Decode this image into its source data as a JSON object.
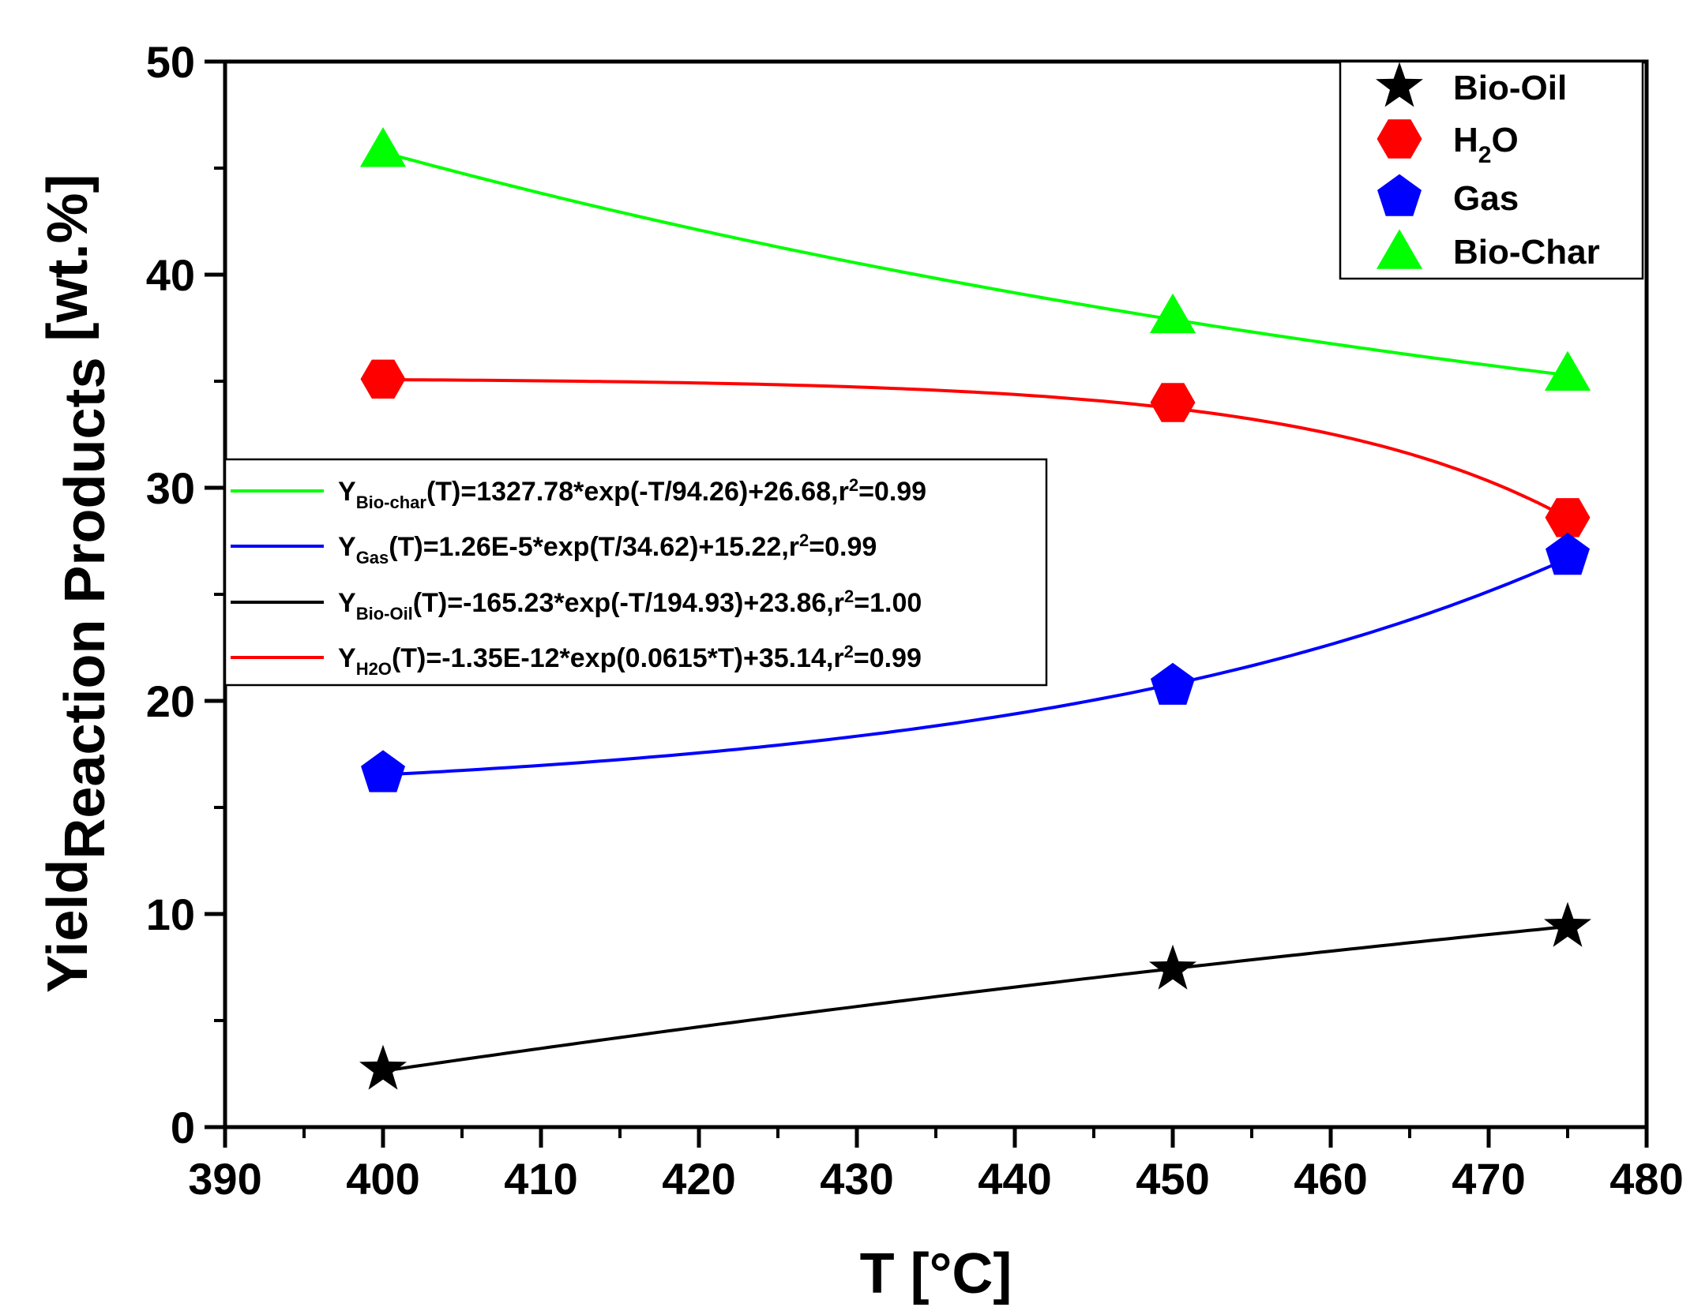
{
  "chart_data": {
    "type": "scatter",
    "title": "",
    "xlabel": "T [°C]",
    "ylabel": {
      "main": "Yield",
      "sub": "Reaction Products",
      "unit": " [wt.%]"
    },
    "xlim": [
      390,
      480
    ],
    "ylim": [
      0,
      50
    ],
    "x_ticks": [
      390,
      400,
      410,
      420,
      430,
      440,
      450,
      460,
      470,
      480
    ],
    "y_ticks": [
      0,
      10,
      20,
      30,
      40,
      50
    ],
    "x": [
      400,
      450,
      475
    ],
    "series": [
      {
        "name": "Bio-Oil",
        "marker": "star",
        "color": "#000000",
        "values": [
          2.7,
          7.4,
          9.4
        ],
        "fit": {
          "a": -165.23,
          "b": -194.93,
          "c": 23.86
        }
      },
      {
        "name": "H2O",
        "label_main": "H",
        "label_sub": "2",
        "label_tail": "O",
        "marker": "hexagon",
        "color": "#ff0000",
        "values": [
          35.1,
          34.0,
          28.6
        ],
        "fit": {
          "kind": "exp_lin",
          "a": -1.35e-12,
          "k": 0.0615,
          "c": 35.14
        }
      },
      {
        "name": "Gas",
        "marker": "pentagon",
        "color": "#0000ff",
        "values": [
          16.6,
          20.7,
          26.8
        ],
        "fit": {
          "a": 1.26e-05,
          "b": 34.62,
          "c": 15.22
        }
      },
      {
        "name": "Bio-Char",
        "marker": "triangle",
        "color": "#00ff00",
        "values": [
          45.9,
          38.1,
          35.4
        ],
        "fit": {
          "a": 1327.78,
          "b": -94.26,
          "c": 26.68
        }
      }
    ],
    "legend": {
      "position": "top-right"
    },
    "equations": [
      {
        "color": "#00ff00",
        "y": "Y",
        "sub": "Bio-char",
        "body": "(T)=1327.78*exp(-T/94.26)+26.68,r",
        "sup": "2",
        "tail": "=0.99"
      },
      {
        "color": "#0000ff",
        "y": "Y",
        "sub": "Gas",
        "body": "(T)=1.26E-5*exp(T/34.62)+15.22,r",
        "sup": "2",
        "tail": "=0.99"
      },
      {
        "color": "#000000",
        "y": "Y",
        "sub": "Bio-Oil",
        "body": "(T)=-165.23*exp(-T/194.93)+23.86,r",
        "sup": "2",
        "tail": "=1.00"
      },
      {
        "color": "#ff0000",
        "y": "Y",
        "sub": "H2O",
        "body": "(T)=-1.35E-12*exp(0.0615*T)+35.14,r",
        "sup": "2",
        "tail": "=0.99"
      }
    ]
  }
}
